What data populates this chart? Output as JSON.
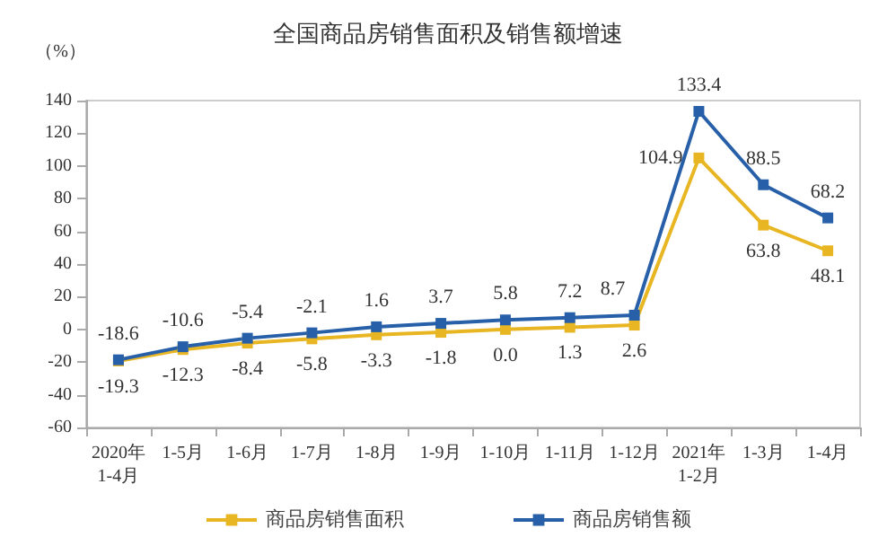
{
  "chart_data": {
    "type": "line",
    "title": "全国商品房销售面积及销售额增速",
    "ylabel": "（%）",
    "categories": [
      "2020年\n1-4月",
      "1-5月",
      "1-6月",
      "1-7月",
      "1-8月",
      "1-9月",
      "1-10月",
      "1-11月",
      "1-12月",
      "2021年\n1-2月",
      "1-3月",
      "1-4月"
    ],
    "series": [
      {
        "name": "商品房销售面积",
        "color": "#e8b623",
        "values": [
          -19.3,
          -12.3,
          -8.4,
          -5.8,
          -3.3,
          -1.8,
          0.0,
          1.3,
          2.6,
          104.9,
          63.8,
          48.1
        ],
        "value_labels": [
          "-19.3",
          "-12.3",
          "-8.4",
          "-5.8",
          "-3.3",
          "-1.8",
          "0.0",
          "1.3",
          "2.6",
          "104.9",
          "63.8",
          "48.1"
        ]
      },
      {
        "name": "商品房销售额",
        "color": "#2760a8",
        "values": [
          -18.6,
          -10.6,
          -5.4,
          -2.1,
          1.6,
          3.7,
          5.8,
          7.2,
          8.7,
          133.4,
          88.5,
          68.2
        ],
        "value_labels": [
          "-18.6",
          "-10.6",
          "-5.4",
          "-2.1",
          "1.6",
          "3.7",
          "5.8",
          "7.2",
          "8.7",
          "133.4",
          "88.5",
          "68.2"
        ]
      }
    ],
    "ylim": [
      -60,
      140
    ],
    "yticks": [
      -60,
      -40,
      -20,
      0,
      20,
      40,
      60,
      80,
      100,
      120,
      140
    ],
    "grid": false,
    "legend": "bottom",
    "marker": "square"
  }
}
